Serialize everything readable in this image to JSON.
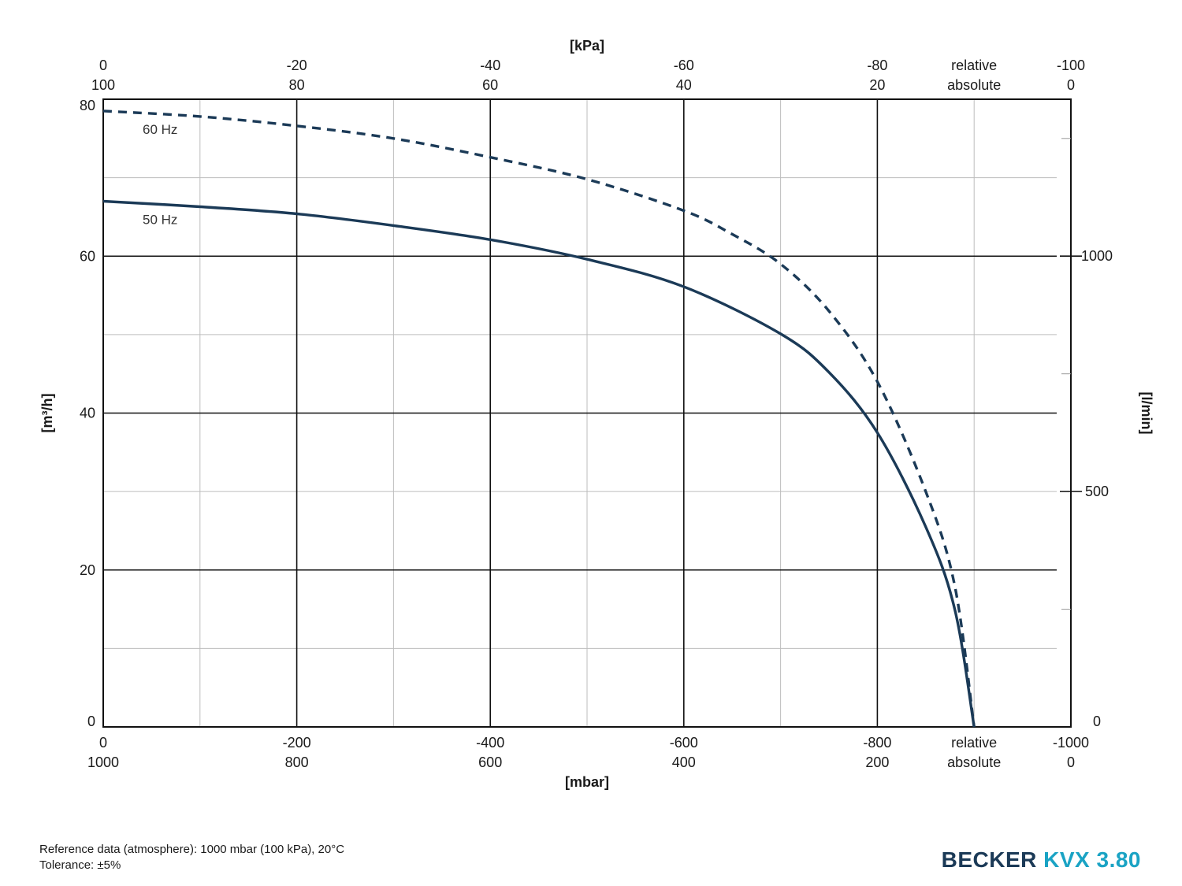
{
  "chart_data": {
    "type": "line",
    "top_axis": {
      "title": "[kPa]",
      "relative_ticks": [
        "0",
        "-20",
        "-40",
        "-60",
        "-80",
        "-100"
      ],
      "absolute_ticks": [
        "100",
        "80",
        "60",
        "40",
        "20",
        "0"
      ],
      "relative_label": "relative",
      "absolute_label": "absolute"
    },
    "bottom_axis": {
      "title": "[mbar]",
      "relative_ticks": [
        "0",
        "-200",
        "-400",
        "-600",
        "-800",
        "-1000"
      ],
      "absolute_ticks": [
        "1000",
        "800",
        "600",
        "400",
        "200",
        "0"
      ],
      "relative_label": "relative",
      "absolute_label": "absolute",
      "range": [
        0,
        -1000
      ]
    },
    "left_axis": {
      "title": "[m³/h]",
      "ticks": [
        "0",
        "20",
        "40",
        "60",
        "80"
      ],
      "range": [
        0,
        80
      ]
    },
    "right_axis": {
      "title": "[l/min]",
      "ticks": [
        "0",
        "500",
        "1000"
      ],
      "range": [
        0,
        1333.3
      ]
    },
    "grid": true,
    "series": [
      {
        "name": "50 Hz",
        "style": "solid",
        "color": "#1b3a57",
        "x": [
          0,
          -100,
          -200,
          -300,
          -400,
          -500,
          -600,
          -700,
          -750,
          -800,
          -850,
          -880,
          -900
        ],
        "y": [
          67,
          66.3,
          65.4,
          63.9,
          62.1,
          59.6,
          56.1,
          50.1,
          45.2,
          37.5,
          25.5,
          15,
          0
        ]
      },
      {
        "name": "60 Hz",
        "style": "dashed",
        "color": "#1b3a57",
        "x": [
          0,
          -100,
          -200,
          -300,
          -400,
          -500,
          -600,
          -650,
          -700,
          -750,
          -800,
          -850,
          -880,
          -900
        ],
        "y": [
          78.5,
          77.8,
          76.6,
          75,
          72.6,
          69.8,
          65.8,
          62.8,
          59,
          53,
          44,
          30,
          18,
          0
        ]
      }
    ]
  },
  "footer": {
    "reference": "Reference data (atmosphere): 1000 mbar (100 kPa), 20°C",
    "tolerance": "Tolerance: ±5%"
  },
  "brand": {
    "maker": "BECKER",
    "model": "KVX 3.80",
    "maker_color": "#1b3a57",
    "model_color": "#1aa3c4"
  }
}
